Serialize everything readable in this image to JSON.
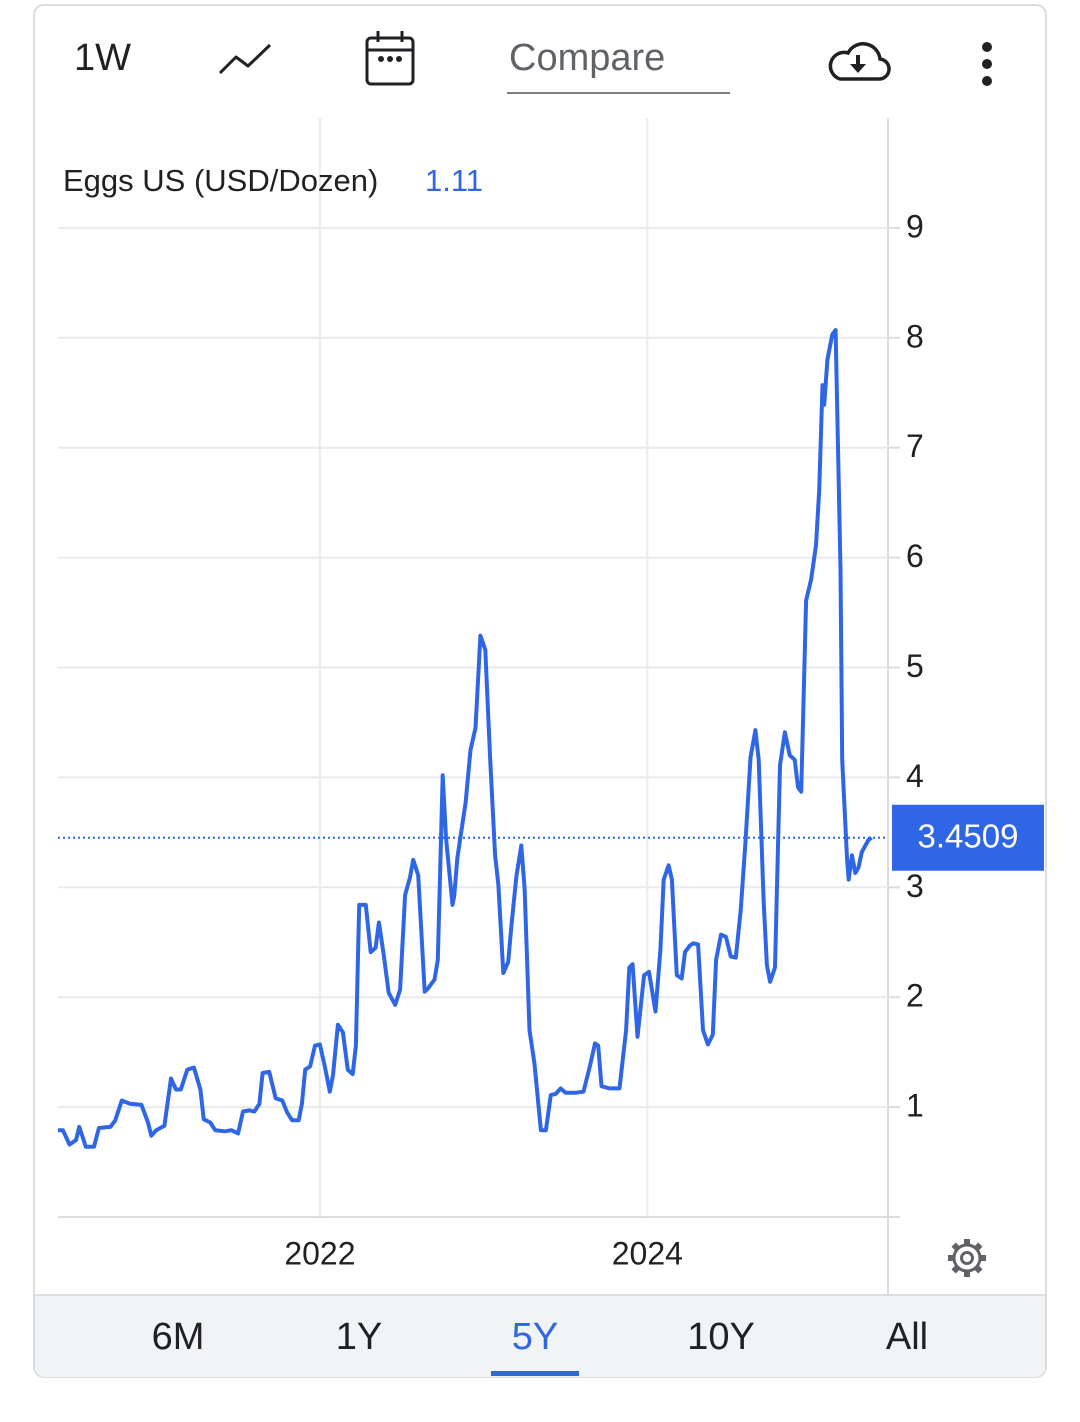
{
  "toolbar": {
    "interval": "1W",
    "compare_placeholder": "Compare"
  },
  "ranges": [
    "6M",
    "1Y",
    "5Y",
    "10Y",
    "All"
  ],
  "selected_range": 2,
  "chart_data": {
    "type": "line",
    "x": [
      2020.4,
      2020.43,
      2020.47,
      2020.51,
      2020.53,
      2020.57,
      2020.62,
      2020.65,
      2020.72,
      2020.75,
      2020.79,
      2020.84,
      2020.91,
      2020.95,
      2020.97,
      2021.0,
      2021.05,
      2021.09,
      2021.12,
      2021.15,
      2021.19,
      2021.23,
      2021.27,
      2021.29,
      2021.33,
      2021.36,
      2021.42,
      2021.46,
      2021.5,
      2021.53,
      2021.57,
      2021.6,
      2021.63,
      2021.65,
      2021.69,
      2021.73,
      2021.77,
      2021.8,
      2021.83,
      2021.87,
      2021.89,
      2021.91,
      2021.94,
      2021.97,
      2022.0,
      2022.03,
      2022.06,
      2022.08,
      2022.11,
      2022.14,
      2022.17,
      2022.2,
      2022.22,
      2022.24,
      2022.28,
      2022.31,
      2022.34,
      2022.36,
      2022.39,
      2022.42,
      2022.46,
      2022.49,
      2022.52,
      2022.55,
      2022.57,
      2022.6,
      2022.64,
      2022.66,
      2022.7,
      2022.72,
      2022.75,
      2022.77,
      2022.81,
      2022.82,
      2022.84,
      2022.89,
      2022.92,
      2022.95,
      2022.98,
      2023.01,
      2023.04,
      2023.07,
      2023.09,
      2023.12,
      2023.15,
      2023.17,
      2023.2,
      2023.23,
      2023.25,
      2023.28,
      2023.31,
      2023.35,
      2023.38,
      2023.41,
      2023.44,
      2023.47,
      2023.5,
      2023.56,
      2023.61,
      2023.65,
      2023.68,
      2023.7,
      2023.72,
      2023.77,
      2023.83,
      2023.87,
      2023.89,
      2023.91,
      2023.94,
      2023.98,
      2024.01,
      2024.05,
      2024.08,
      2024.1,
      2024.13,
      2024.15,
      2024.18,
      2024.21,
      2024.23,
      2024.26,
      2024.28,
      2024.31,
      2024.34,
      2024.37,
      2024.4,
      2024.42,
      2024.45,
      2024.48,
      2024.51,
      2024.54,
      2024.57,
      2024.6,
      2024.63,
      2024.66,
      2024.68,
      2024.71,
      2024.73,
      2024.75,
      2024.78,
      2024.81,
      2024.84,
      2024.87,
      2024.9,
      2024.92,
      2024.94,
      2024.97,
      2025.0,
      2025.03,
      2025.05,
      2025.07,
      2025.08,
      2025.1,
      2025.13,
      2025.15,
      2025.18,
      2025.19,
      2025.22,
      2025.23,
      2025.25,
      2025.27,
      2025.29,
      2025.31,
      2025.35,
      2025.37
    ],
    "series": [
      {
        "name": "Eggs US (USD/Dozen)",
        "change": 1.11,
        "color": "#2f66e6",
        "values": [
          0.79,
          0.79,
          0.66,
          0.7,
          0.82,
          0.64,
          0.64,
          0.81,
          0.82,
          0.88,
          1.06,
          1.03,
          1.02,
          0.86,
          0.74,
          0.79,
          0.83,
          1.26,
          1.16,
          1.16,
          1.34,
          1.36,
          1.16,
          0.89,
          0.86,
          0.79,
          0.78,
          0.79,
          0.76,
          0.96,
          0.97,
          0.96,
          1.03,
          1.31,
          1.32,
          1.08,
          1.06,
          0.95,
          0.88,
          0.88,
          1.03,
          1.34,
          1.37,
          1.56,
          1.57,
          1.37,
          1.14,
          1.29,
          1.75,
          1.68,
          1.34,
          1.3,
          1.56,
          2.84,
          2.84,
          2.41,
          2.45,
          2.68,
          2.38,
          2.04,
          1.93,
          2.07,
          2.93,
          3.09,
          3.25,
          3.11,
          2.05,
          2.08,
          2.16,
          2.34,
          4.02,
          3.45,
          2.84,
          2.92,
          3.27,
          3.77,
          4.25,
          4.45,
          5.29,
          5.16,
          4.16,
          3.29,
          3.02,
          2.22,
          2.32,
          2.66,
          3.1,
          3.38,
          2.99,
          1.7,
          1.4,
          0.79,
          0.79,
          1.11,
          1.12,
          1.17,
          1.13,
          1.13,
          1.14,
          1.38,
          1.58,
          1.56,
          1.19,
          1.17,
          1.17,
          1.7,
          2.27,
          2.3,
          1.64,
          2.2,
          2.23,
          1.87,
          2.43,
          3.07,
          3.2,
          3.07,
          2.2,
          2.17,
          2.41,
          2.47,
          2.49,
          2.48,
          1.7,
          1.57,
          1.66,
          2.34,
          2.57,
          2.55,
          2.37,
          2.36,
          2.79,
          3.43,
          4.18,
          4.43,
          4.16,
          2.88,
          2.29,
          2.14,
          2.27,
          4.11,
          4.41,
          4.2,
          4.16,
          3.91,
          3.87,
          5.61,
          5.8,
          6.11,
          6.61,
          7.57,
          7.39,
          7.8,
          8.03,
          8.07,
          5.89,
          4.16,
          3.25,
          3.07,
          3.29,
          3.13,
          3.18,
          3.32,
          3.43,
          3.4509
        ]
      }
    ],
    "xlim": [
      2020.4,
      2025.47
    ],
    "xticks": [
      2022,
      2024
    ],
    "ylim": [
      0,
      10
    ],
    "yticks": [
      1,
      2,
      3,
      4,
      5,
      6,
      7,
      8,
      9
    ],
    "grid": true
  }
}
